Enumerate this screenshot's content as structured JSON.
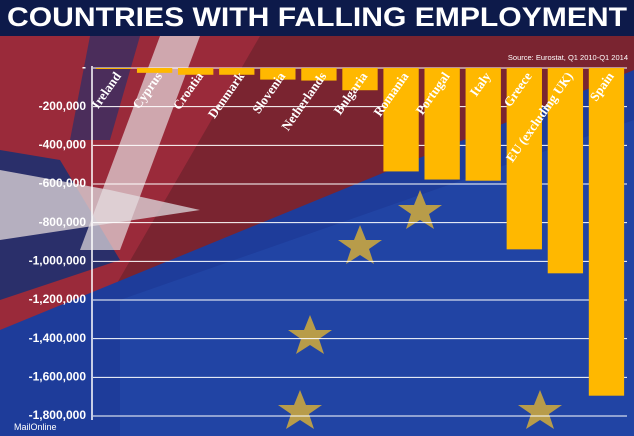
{
  "chart_data": {
    "type": "bar",
    "title": "COUNTRIES WITH FALLING EMPLOYMENT",
    "source": "Source: Eurostat, Q1 2010-Q1 2014",
    "footer": "MailOnline",
    "categories": [
      "Ireland",
      "Cyprus",
      "Croatia",
      "Denmark",
      "Slovenia",
      "Netherlands",
      "Bulgaria",
      "Romania",
      "Portugal",
      "Italy",
      "Greece",
      "EU (excluding UK)",
      "Spain"
    ],
    "values": [
      -5000,
      -25000,
      -35000,
      -35000,
      -60000,
      -65000,
      -115000,
      -535000,
      -577000,
      -583000,
      -938000,
      -1062000,
      -1695000
    ],
    "color": "#ffb800",
    "ylim": [
      -1800000,
      0
    ],
    "yticks": [
      {
        "value": 0,
        "label": "-"
      },
      {
        "value": -200000,
        "label": "-200,000"
      },
      {
        "value": -400000,
        "label": "-400,000"
      },
      {
        "value": -600000,
        "label": "-600,000"
      },
      {
        "value": -800000,
        "label": "-800,000"
      },
      {
        "value": -1000000,
        "label": "-1,000,000"
      },
      {
        "value": -1200000,
        "label": "-1,200,000"
      },
      {
        "value": -1400000,
        "label": "-1,400,000"
      },
      {
        "value": -1600000,
        "label": "-1,600,000"
      },
      {
        "value": -1800000,
        "label": "-1,800,000"
      }
    ],
    "grid": true
  }
}
